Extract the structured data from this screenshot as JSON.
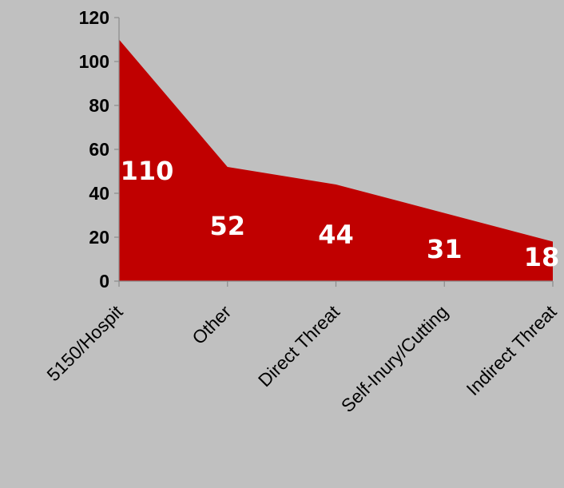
{
  "chart_data": {
    "type": "area",
    "categories": [
      "5150/Hospit",
      "Other",
      "Direct Threat",
      "Self-Inury/Cutting",
      "Indirect Threat"
    ],
    "values": [
      110,
      52,
      44,
      31,
      18
    ],
    "data_labels": [
      "110",
      "52",
      "44",
      "31",
      "18"
    ],
    "title": "",
    "xlabel": "",
    "ylabel": "",
    "ylim": [
      0,
      120
    ],
    "yticks": [
      "0",
      "20",
      "40",
      "60",
      "80",
      "100",
      "120"
    ],
    "grid": false,
    "legend": "none",
    "colors": {
      "fill": "#c00000",
      "background": "#c0c0c0",
      "axis": "#8c8c8c",
      "label": "#ffffff"
    }
  }
}
